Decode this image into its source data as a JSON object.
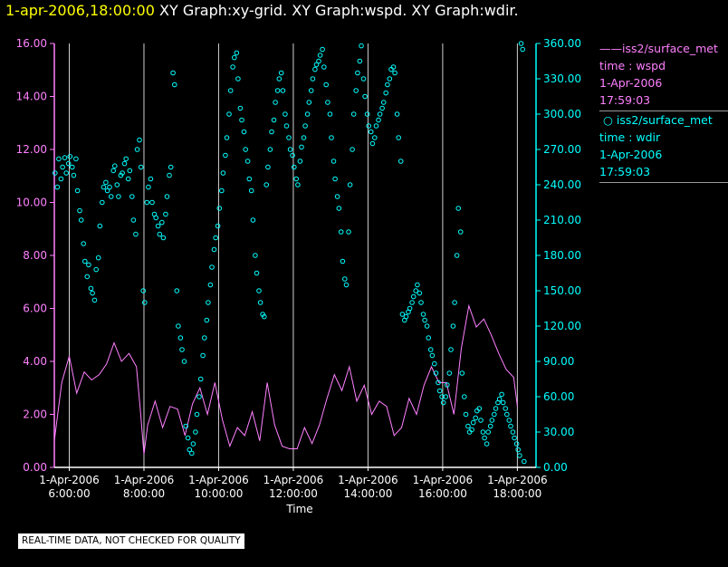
{
  "header": {
    "timestamp": "1-apr-2006,18:00:00",
    "graphs": "XY Graph:xy-grid.  XY Graph:wspd.  XY Graph:wdir."
  },
  "legend": {
    "wspd": {
      "name": "iss2/surface_met",
      "var": "time : wspd",
      "date": "1-Apr-2006",
      "time": "17:59:03"
    },
    "wdir": {
      "name": "iss2/surface_met",
      "var": "time : wdir",
      "date": "1-Apr-2006",
      "time": "17:59:03"
    }
  },
  "footer_note": "REAL-TIME DATA, NOT CHECKED FOR QUALITY",
  "colors": {
    "wspd": "#ff80ff",
    "wdir": "#00ffff",
    "grid": "#d0d0d0",
    "axis_left": "#ff80ff",
    "axis_right": "#00ffff"
  },
  "chart_data": {
    "type": "line+scatter",
    "xlabel": "Time",
    "x_range_hours": [
      5.6,
      18.5
    ],
    "x_ticks": [
      {
        "h": 6,
        "date": "1-Apr-2006",
        "time": "6:00:00"
      },
      {
        "h": 8,
        "date": "1-Apr-2006",
        "time": "8:00:00"
      },
      {
        "h": 10,
        "date": "1-Apr-2006",
        "time": "10:00:00"
      },
      {
        "h": 12,
        "date": "1-Apr-2006",
        "time": "12:00:00"
      },
      {
        "h": 14,
        "date": "1-Apr-2006",
        "time": "14:00:00"
      },
      {
        "h": 16,
        "date": "1-Apr-2006",
        "time": "16:00:00"
      },
      {
        "h": 18,
        "date": "1-Apr-2006",
        "time": "18:00:00"
      }
    ],
    "left_axis": {
      "series": "wspd",
      "range": [
        0,
        16
      ],
      "ticks": [
        "0.00",
        "2.00",
        "4.00",
        "6.00",
        "8.00",
        "10.00",
        "12.00",
        "14.00",
        "16.00"
      ]
    },
    "right_axis": {
      "series": "wdir",
      "range": [
        0,
        360
      ],
      "ticks": [
        "0.00",
        "30.00",
        "60.00",
        "90.00",
        "120.00",
        "150.00",
        "180.00",
        "210.00",
        "240.00",
        "270.00",
        "300.00",
        "330.00",
        "360.00"
      ]
    },
    "wspd": {
      "name": "iss2/surface_met wspd",
      "h": [
        5.6,
        5.8,
        6.0,
        6.2,
        6.4,
        6.6,
        6.8,
        7.0,
        7.2,
        7.4,
        7.6,
        7.8,
        7.9,
        8.0,
        8.1,
        8.3,
        8.5,
        8.7,
        8.9,
        9.1,
        9.3,
        9.5,
        9.7,
        9.9,
        10.1,
        10.3,
        10.5,
        10.7,
        10.9,
        11.1,
        11.3,
        11.5,
        11.7,
        11.9,
        12.1,
        12.3,
        12.5,
        12.7,
        12.9,
        13.1,
        13.3,
        13.5,
        13.7,
        13.9,
        14.1,
        14.3,
        14.5,
        14.7,
        14.9,
        15.1,
        15.3,
        15.5,
        15.7,
        15.9,
        16.1,
        16.3,
        16.5,
        16.7,
        16.9,
        17.1,
        17.3,
        17.5,
        17.7,
        17.9,
        18.0
      ],
      "v": [
        1.0,
        3.2,
        4.2,
        2.8,
        3.6,
        3.3,
        3.5,
        3.9,
        4.7,
        4.0,
        4.3,
        3.8,
        2.2,
        0.5,
        1.6,
        2.5,
        1.5,
        2.3,
        2.2,
        1.2,
        2.4,
        3.0,
        2.0,
        3.2,
        1.8,
        0.8,
        1.5,
        1.2,
        2.1,
        1.0,
        3.2,
        1.6,
        0.8,
        0.7,
        0.7,
        1.5,
        0.9,
        1.6,
        2.6,
        3.5,
        2.9,
        3.8,
        2.5,
        3.1,
        2.0,
        2.5,
        2.3,
        1.2,
        1.5,
        2.6,
        2.0,
        3.1,
        3.8,
        3.2,
        3.2,
        2.0,
        4.5,
        6.1,
        5.3,
        5.6,
        5.0,
        4.3,
        3.7,
        3.4,
        2.3
      ]
    },
    "wdir": {
      "name": "iss2/surface_met wdir",
      "points": [
        [
          5.62,
          250
        ],
        [
          5.68,
          238
        ],
        [
          5.72,
          262
        ],
        [
          5.78,
          245
        ],
        [
          5.82,
          255
        ],
        [
          5.88,
          263
        ],
        [
          5.92,
          250
        ],
        [
          5.98,
          258
        ],
        [
          6.02,
          264
        ],
        [
          6.08,
          255
        ],
        [
          6.12,
          248
        ],
        [
          6.18,
          262
        ],
        [
          6.22,
          235
        ],
        [
          6.28,
          218
        ],
        [
          6.32,
          210
        ],
        [
          6.38,
          190
        ],
        [
          6.42,
          175
        ],
        [
          6.48,
          162
        ],
        [
          6.52,
          172
        ],
        [
          6.58,
          152
        ],
        [
          6.62,
          148
        ],
        [
          6.68,
          142
        ],
        [
          6.72,
          168
        ],
        [
          6.78,
          178
        ],
        [
          6.82,
          205
        ],
        [
          6.88,
          225
        ],
        [
          6.92,
          238
        ],
        [
          6.98,
          242
        ],
        [
          7.02,
          235
        ],
        [
          7.08,
          238
        ],
        [
          7.12,
          230
        ],
        [
          7.18,
          252
        ],
        [
          7.22,
          256
        ],
        [
          7.28,
          240
        ],
        [
          7.32,
          230
        ],
        [
          7.38,
          248
        ],
        [
          7.42,
          250
        ],
        [
          7.48,
          258
        ],
        [
          7.52,
          262
        ],
        [
          7.58,
          245
        ],
        [
          7.62,
          252
        ],
        [
          7.68,
          230
        ],
        [
          7.72,
          210
        ],
        [
          7.78,
          198
        ],
        [
          7.82,
          270
        ],
        [
          7.88,
          278
        ],
        [
          7.92,
          255
        ],
        [
          7.98,
          150
        ],
        [
          8.02,
          140
        ],
        [
          8.08,
          225
        ],
        [
          8.12,
          238
        ],
        [
          8.18,
          245
        ],
        [
          8.22,
          225
        ],
        [
          8.28,
          215
        ],
        [
          8.32,
          212
        ],
        [
          8.38,
          205
        ],
        [
          8.42,
          198
        ],
        [
          8.48,
          208
        ],
        [
          8.52,
          195
        ],
        [
          8.58,
          215
        ],
        [
          8.62,
          230
        ],
        [
          8.68,
          248
        ],
        [
          8.72,
          255
        ],
        [
          8.78,
          335
        ],
        [
          8.82,
          325
        ],
        [
          8.88,
          150
        ],
        [
          8.92,
          120
        ],
        [
          8.98,
          110
        ],
        [
          9.02,
          100
        ],
        [
          9.08,
          90
        ],
        [
          9.12,
          35
        ],
        [
          9.18,
          25
        ],
        [
          9.22,
          15
        ],
        [
          9.28,
          12
        ],
        [
          9.32,
          20
        ],
        [
          9.38,
          30
        ],
        [
          9.42,
          45
        ],
        [
          9.48,
          60
        ],
        [
          9.52,
          75
        ],
        [
          9.58,
          95
        ],
        [
          9.62,
          110
        ],
        [
          9.68,
          125
        ],
        [
          9.72,
          140
        ],
        [
          9.78,
          155
        ],
        [
          9.82,
          170
        ],
        [
          9.88,
          185
        ],
        [
          9.92,
          195
        ],
        [
          9.98,
          205
        ],
        [
          10.02,
          220
        ],
        [
          10.08,
          235
        ],
        [
          10.12,
          250
        ],
        [
          10.18,
          265
        ],
        [
          10.22,
          280
        ],
        [
          10.28,
          300
        ],
        [
          10.32,
          320
        ],
        [
          10.38,
          340
        ],
        [
          10.42,
          348
        ],
        [
          10.48,
          352
        ],
        [
          10.52,
          330
        ],
        [
          10.58,
          305
        ],
        [
          10.62,
          295
        ],
        [
          10.68,
          285
        ],
        [
          10.72,
          270
        ],
        [
          10.78,
          260
        ],
        [
          10.82,
          245
        ],
        [
          10.88,
          235
        ],
        [
          10.92,
          210
        ],
        [
          10.98,
          180
        ],
        [
          11.02,
          165
        ],
        [
          11.08,
          150
        ],
        [
          11.12,
          140
        ],
        [
          11.18,
          130
        ],
        [
          11.22,
          128
        ],
        [
          11.28,
          240
        ],
        [
          11.32,
          255
        ],
        [
          11.38,
          270
        ],
        [
          11.42,
          285
        ],
        [
          11.48,
          295
        ],
        [
          11.52,
          310
        ],
        [
          11.58,
          320
        ],
        [
          11.62,
          330
        ],
        [
          11.68,
          335
        ],
        [
          11.72,
          320
        ],
        [
          11.78,
          300
        ],
        [
          11.82,
          290
        ],
        [
          11.88,
          280
        ],
        [
          11.92,
          270
        ],
        [
          11.98,
          265
        ],
        [
          12.02,
          255
        ],
        [
          12.08,
          245
        ],
        [
          12.12,
          240
        ],
        [
          12.18,
          260
        ],
        [
          12.22,
          272
        ],
        [
          12.28,
          280
        ],
        [
          12.32,
          290
        ],
        [
          12.38,
          300
        ],
        [
          12.42,
          310
        ],
        [
          12.48,
          320
        ],
        [
          12.52,
          330
        ],
        [
          12.58,
          338
        ],
        [
          12.62,
          342
        ],
        [
          12.68,
          345
        ],
        [
          12.72,
          350
        ],
        [
          12.78,
          355
        ],
        [
          12.82,
          340
        ],
        [
          12.88,
          325
        ],
        [
          12.92,
          310
        ],
        [
          12.98,
          300
        ],
        [
          13.02,
          280
        ],
        [
          13.08,
          260
        ],
        [
          13.12,
          245
        ],
        [
          13.18,
          230
        ],
        [
          13.22,
          220
        ],
        [
          13.28,
          200
        ],
        [
          13.32,
          175
        ],
        [
          13.38,
          160
        ],
        [
          13.42,
          155
        ],
        [
          13.48,
          200
        ],
        [
          13.52,
          240
        ],
        [
          13.58,
          270
        ],
        [
          13.62,
          300
        ],
        [
          13.68,
          320
        ],
        [
          13.72,
          335
        ],
        [
          13.78,
          345
        ],
        [
          13.82,
          358
        ],
        [
          13.88,
          330
        ],
        [
          13.92,
          315
        ],
        [
          13.98,
          300
        ],
        [
          14.02,
          290
        ],
        [
          14.08,
          285
        ],
        [
          14.12,
          275
        ],
        [
          14.18,
          280
        ],
        [
          14.22,
          290
        ],
        [
          14.28,
          295
        ],
        [
          14.32,
          300
        ],
        [
          14.38,
          305
        ],
        [
          14.42,
          310
        ],
        [
          14.48,
          318
        ],
        [
          14.52,
          325
        ],
        [
          14.58,
          330
        ],
        [
          14.62,
          338
        ],
        [
          14.68,
          340
        ],
        [
          14.72,
          335
        ],
        [
          14.78,
          300
        ],
        [
          14.82,
          280
        ],
        [
          14.88,
          260
        ],
        [
          14.92,
          130
        ],
        [
          14.98,
          125
        ],
        [
          15.02,
          128
        ],
        [
          15.08,
          132
        ],
        [
          15.12,
          135
        ],
        [
          15.18,
          140
        ],
        [
          15.22,
          145
        ],
        [
          15.28,
          150
        ],
        [
          15.32,
          155
        ],
        [
          15.38,
          148
        ],
        [
          15.42,
          140
        ],
        [
          15.48,
          130
        ],
        [
          15.52,
          125
        ],
        [
          15.58,
          120
        ],
        [
          15.62,
          110
        ],
        [
          15.68,
          100
        ],
        [
          15.72,
          95
        ],
        [
          15.78,
          88
        ],
        [
          15.82,
          80
        ],
        [
          15.88,
          72
        ],
        [
          15.92,
          65
        ],
        [
          15.98,
          60
        ],
        [
          16.02,
          55
        ],
        [
          16.08,
          60
        ],
        [
          16.12,
          70
        ],
        [
          16.18,
          80
        ],
        [
          16.22,
          100
        ],
        [
          16.28,
          120
        ],
        [
          16.32,
          140
        ],
        [
          16.38,
          180
        ],
        [
          16.42,
          220
        ],
        [
          16.48,
          200
        ],
        [
          16.52,
          80
        ],
        [
          16.58,
          60
        ],
        [
          16.62,
          45
        ],
        [
          16.68,
          35
        ],
        [
          16.72,
          30
        ],
        [
          16.78,
          32
        ],
        [
          16.82,
          38
        ],
        [
          16.88,
          42
        ],
        [
          16.92,
          48
        ],
        [
          16.98,
          50
        ],
        [
          17.02,
          40
        ],
        [
          17.08,
          30
        ],
        [
          17.12,
          25
        ],
        [
          17.18,
          20
        ],
        [
          17.22,
          30
        ],
        [
          17.28,
          35
        ],
        [
          17.32,
          40
        ],
        [
          17.38,
          45
        ],
        [
          17.42,
          50
        ],
        [
          17.48,
          55
        ],
        [
          17.52,
          58
        ],
        [
          17.58,
          62
        ],
        [
          17.62,
          55
        ],
        [
          17.68,
          50
        ],
        [
          17.72,
          45
        ],
        [
          17.78,
          40
        ],
        [
          17.82,
          35
        ],
        [
          17.88,
          30
        ],
        [
          17.92,
          25
        ],
        [
          17.98,
          20
        ],
        [
          18.02,
          15
        ],
        [
          18.06,
          10
        ],
        [
          18.1,
          360
        ],
        [
          18.14,
          355
        ],
        [
          18.18,
          5
        ]
      ]
    }
  }
}
